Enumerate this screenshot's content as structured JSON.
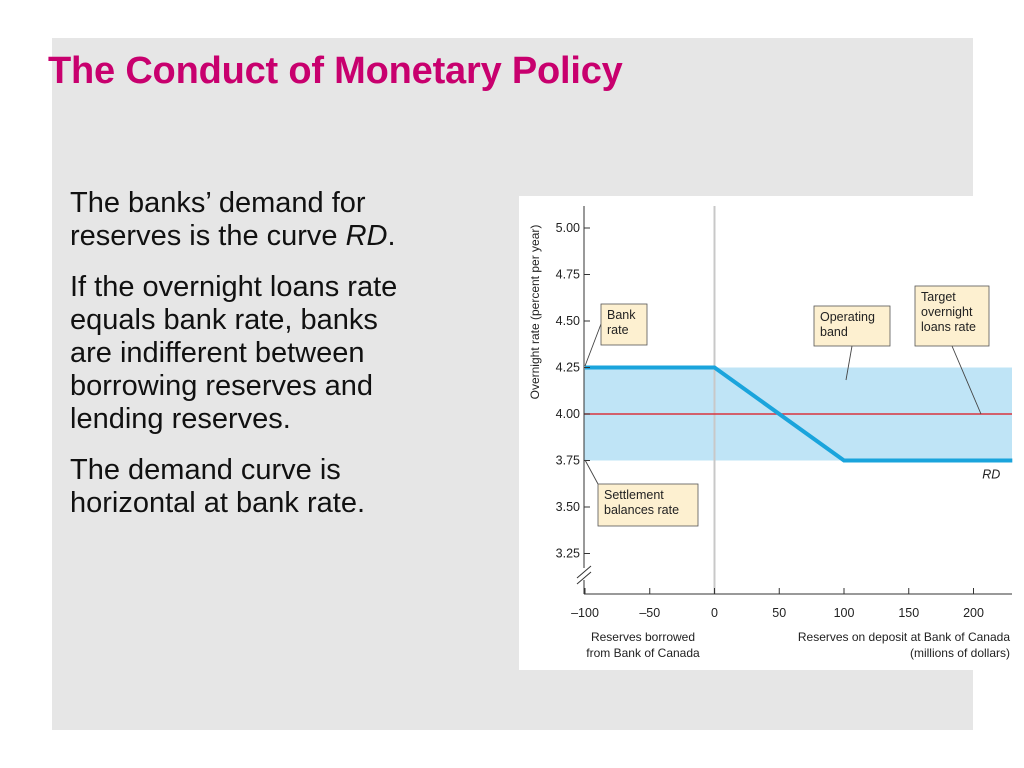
{
  "slide": {
    "title": "The Conduct of Monetary Policy",
    "paragraphs": [
      {
        "before": "The banks’ demand for",
        "line2_before": "reserves is the curve ",
        "italic": "RD",
        "after": "."
      },
      {
        "lines": [
          "If the overnight loans rate",
          "equals bank rate, banks",
          "are indifferent between",
          "borrowing reserves and",
          "lending reserves."
        ]
      },
      {
        "lines": [
          "The demand curve is",
          "horizontal at bank rate."
        ]
      }
    ]
  },
  "chart_data": {
    "type": "line",
    "ylabel": "Overnight rate (percent per year)",
    "xlabel_left": [
      "Reserves borrowed",
      "from Bank of Canada"
    ],
    "xlabel_right": [
      "Reserves on deposit at Bank of Canada",
      "(millions of dollars)"
    ],
    "xlim": [
      -100,
      230
    ],
    "ylim": [
      3.0,
      5.1
    ],
    "x_ticks": [
      {
        "value": -100,
        "label": "–100"
      },
      {
        "value": -50,
        "label": "–50"
      },
      {
        "value": 0,
        "label": "0"
      },
      {
        "value": 50,
        "label": "50"
      },
      {
        "value": 100,
        "label": "100"
      },
      {
        "value": 150,
        "label": "150"
      },
      {
        "value": 200,
        "label": "200"
      }
    ],
    "y_ticks": [
      {
        "value": 5.0,
        "label": "5.00"
      },
      {
        "value": 4.75,
        "label": "4.75"
      },
      {
        "value": 4.5,
        "label": "4.50"
      },
      {
        "value": 4.25,
        "label": "4.25"
      },
      {
        "value": 4.0,
        "label": "4.00"
      },
      {
        "value": 3.75,
        "label": "3.75"
      },
      {
        "value": 3.5,
        "label": "3.50"
      },
      {
        "value": 3.25,
        "label": "3.25"
      }
    ],
    "operating_band": {
      "low": 3.75,
      "high": 4.25,
      "color": "#bfe4f6"
    },
    "target_rate": {
      "value": 4.0,
      "color": "#d9343f"
    },
    "series": [
      {
        "name": "RD",
        "color": "#1aa4dc",
        "points": [
          [
            -100,
            4.25
          ],
          [
            0,
            4.25
          ],
          [
            100,
            3.75
          ],
          [
            230,
            3.75
          ]
        ]
      }
    ],
    "annotations": [
      {
        "lines": [
          "Bank",
          "rate"
        ],
        "anchor": [
          -100,
          4.25
        ]
      },
      {
        "lines": [
          "Operating",
          "band"
        ],
        "anchor": [
          103,
          4.05
        ]
      },
      {
        "lines": [
          "Target",
          "overnight",
          "loans rate"
        ],
        "anchor": [
          206,
          4.0
        ]
      },
      {
        "lines": [
          "Settlement",
          "balances rate"
        ],
        "anchor": [
          -100,
          3.75
        ]
      }
    ],
    "colors": {
      "box_fill": "#fdf0d0",
      "zero_line": "#c8c8c8"
    }
  }
}
